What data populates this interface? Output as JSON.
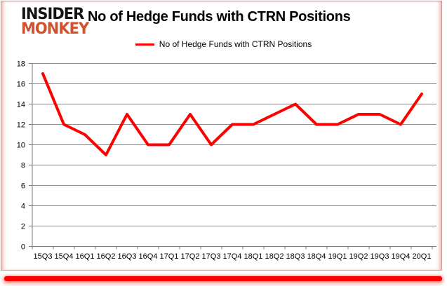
{
  "logo": {
    "line1": "INSIDER",
    "line2": "MONKEY"
  },
  "header": {
    "title": "No of Hedge Funds with CTRN Positions"
  },
  "legend": {
    "label": "No of Hedge Funds with CTRN Positions"
  },
  "colors": {
    "line": "#fe0000",
    "grid": "#8c8c8c",
    "axis": "#7a7a7a",
    "text": "#000000",
    "logo_black": "#141414",
    "logo_red": "#d0532f",
    "frame_border": "#a6a6a6",
    "bottom_bar": "#fe0000"
  },
  "chart_data": {
    "type": "line",
    "categories": [
      "15Q3",
      "15Q4",
      "16Q1",
      "16Q2",
      "16Q3",
      "16Q4",
      "17Q1",
      "17Q2",
      "17Q3",
      "17Q4",
      "18Q1",
      "18Q2",
      "18Q3",
      "18Q4",
      "19Q1",
      "19Q2",
      "19Q3",
      "19Q4",
      "20Q1"
    ],
    "values": [
      17,
      12,
      11,
      9,
      13,
      10,
      10,
      13,
      10,
      12,
      12,
      13,
      14,
      12,
      12,
      13,
      13,
      12,
      15
    ],
    "series_name": "No of Hedge Funds with CTRN Positions",
    "title": "No of Hedge Funds with CTRN Positions",
    "xlabel": "",
    "ylabel": "",
    "ylim": [
      0,
      18
    ],
    "ytick_step": 2,
    "grid": true,
    "legend_position": "top-center"
  }
}
